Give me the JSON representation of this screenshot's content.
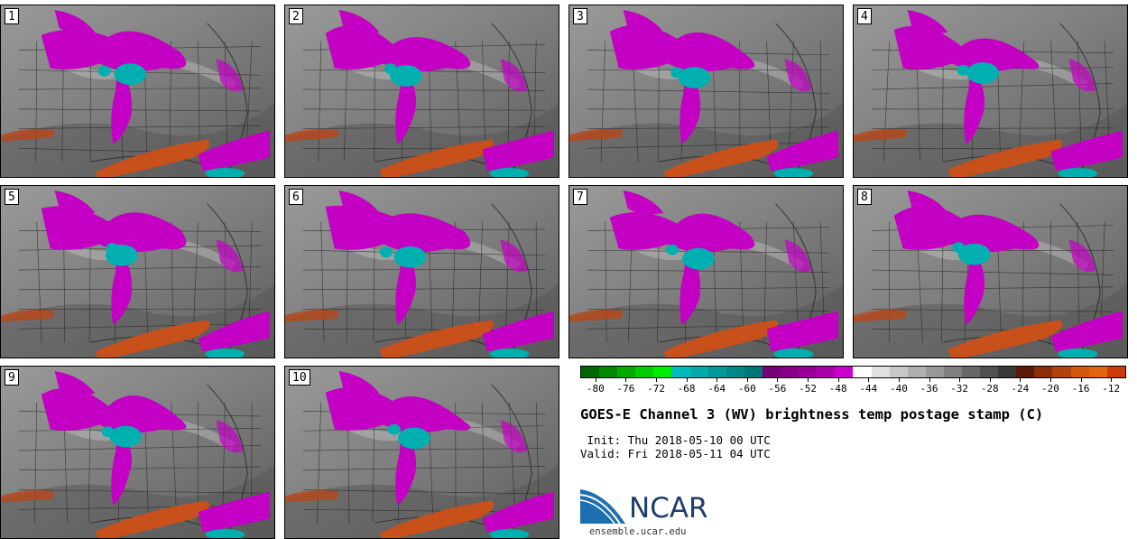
{
  "panels": [
    {
      "label": "1"
    },
    {
      "label": "2"
    },
    {
      "label": "3"
    },
    {
      "label": "4"
    },
    {
      "label": "5"
    },
    {
      "label": "6"
    },
    {
      "label": "7"
    },
    {
      "label": "8"
    },
    {
      "label": "9"
    },
    {
      "label": "10"
    }
  ],
  "colorbar": {
    "colors": [
      "#006600",
      "#008800",
      "#00aa00",
      "#00cc00",
      "#00ee00",
      "#00bbbb",
      "#00aaaa",
      "#009999",
      "#008888",
      "#007777",
      "#770077",
      "#880088",
      "#990099",
      "#aa00aa",
      "#cc00cc",
      "#ffffff",
      "#e0e0e0",
      "#c8c8c8",
      "#b0b0b0",
      "#989898",
      "#808080",
      "#686868",
      "#505050",
      "#383838",
      "#5a1a08",
      "#8a2e0a",
      "#b0420c",
      "#d2570c",
      "#e0640e",
      "#cc3a06"
    ],
    "tick_labels": [
      "-80",
      "-76",
      "-72",
      "-68",
      "-64",
      "-60",
      "-56",
      "-52",
      "-48",
      "-44",
      "-40",
      "-36",
      "-32",
      "-28",
      "-24",
      "-20",
      "-16",
      "-12"
    ]
  },
  "title": "GOES-E Channel 3 (WV) brightness temp postage stamp (C)",
  "init_line": " Init: Thu 2018-05-10 00 UTC",
  "valid_line": "Valid: Fri 2018-05-11 04 UTC",
  "logo": {
    "text": "NCAR",
    "url": "ensemble.ucar.edu",
    "accent_color": "#1f3d6b",
    "swoosh_color": "#1e6fb0"
  }
}
